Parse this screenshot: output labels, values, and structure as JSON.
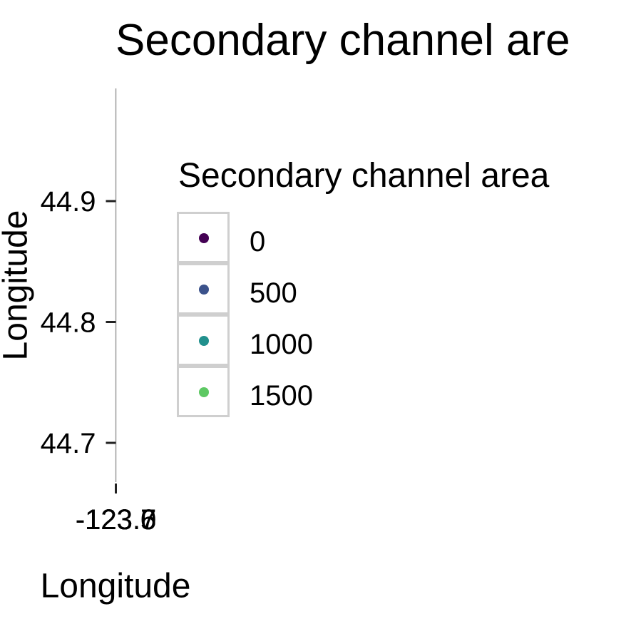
{
  "chart_data": {
    "type": "scatter",
    "title": "Secondary channel are",
    "xlabel": "Longitude",
    "ylabel": "Longitude",
    "y_ticks": [
      "44.9",
      "44.8",
      "44.7"
    ],
    "y_tick_values": [
      44.9,
      44.8,
      44.7
    ],
    "ylim": [
      44.66,
      44.99
    ],
    "x_ticks": [
      "-123.0",
      "-123.7",
      "-123.6",
      "-123.5"
    ],
    "points": [],
    "grid": false,
    "legend": {
      "title": "Secondary channel area",
      "placement": "right",
      "entries": [
        {
          "label": "0",
          "value": 0,
          "color": "#440154"
        },
        {
          "label": "500",
          "value": 500,
          "color": "#3b528b"
        },
        {
          "label": "1000",
          "value": 1000,
          "color": "#21908d"
        },
        {
          "label": "1500",
          "value": 1500,
          "color": "#5dc863"
        }
      ]
    }
  }
}
